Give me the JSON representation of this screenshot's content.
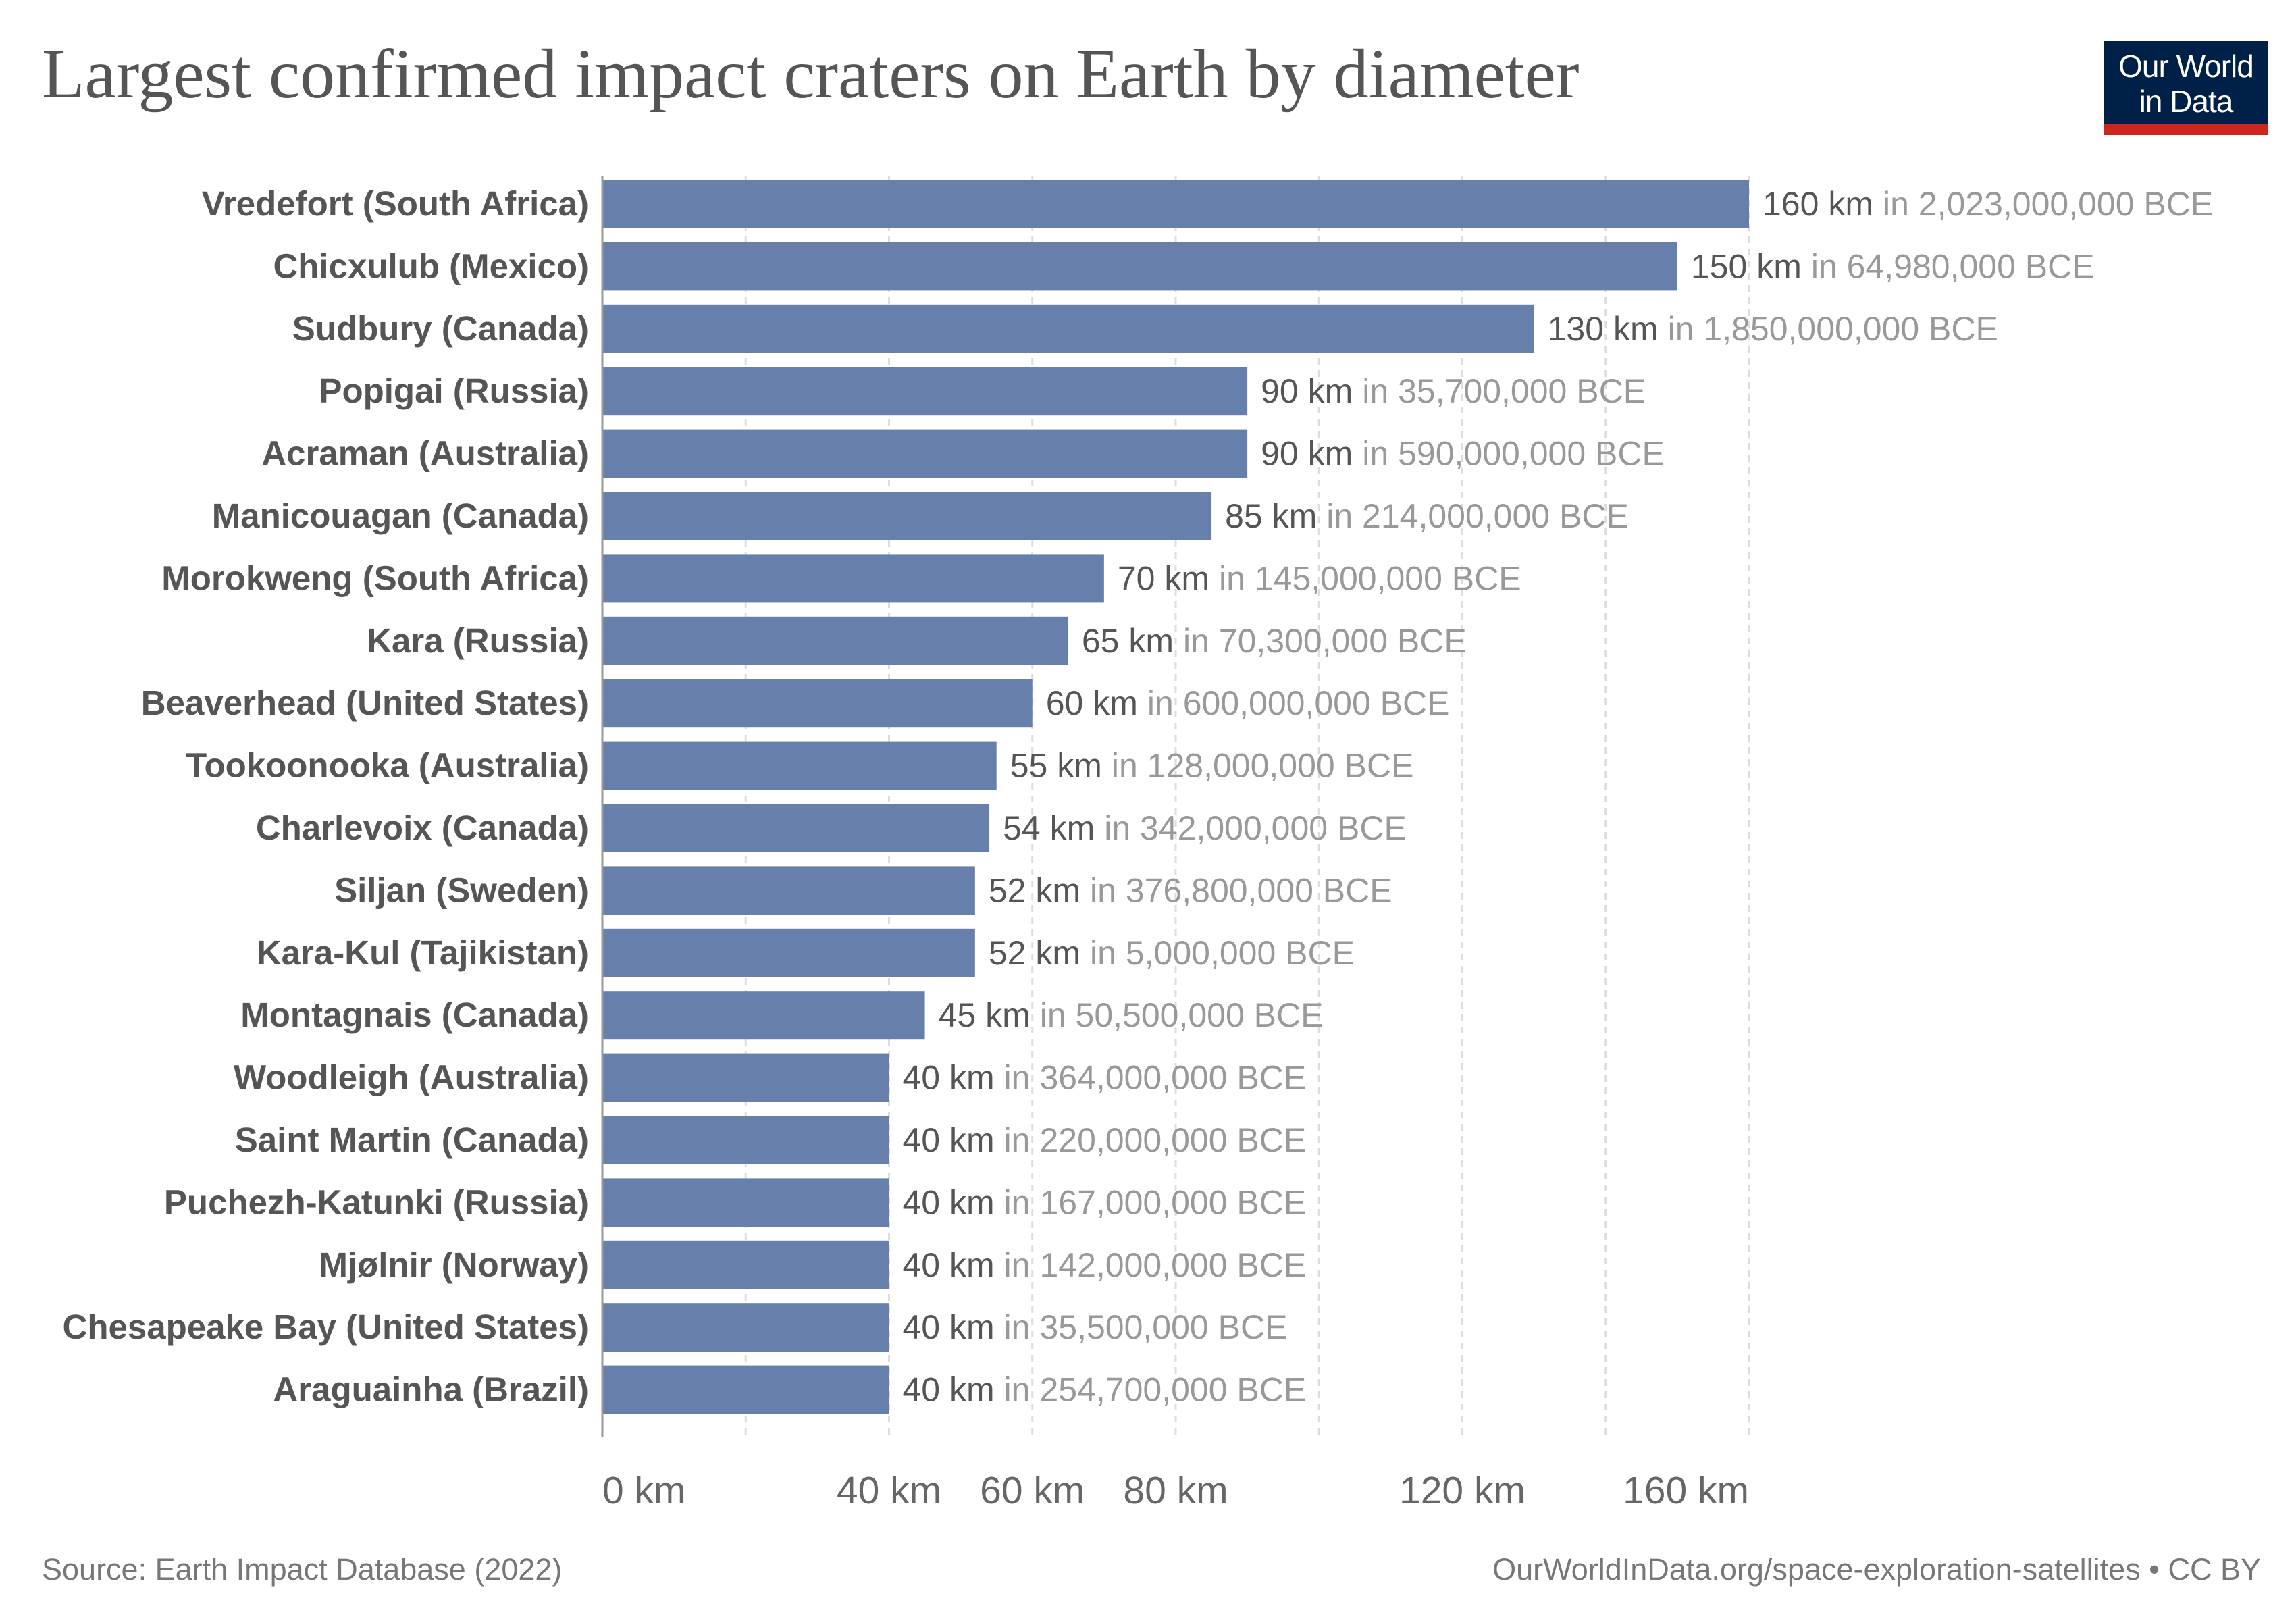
{
  "title": "Largest confirmed impact craters on Earth by diameter",
  "logo": {
    "line1": "Our World",
    "line2": "in Data"
  },
  "source": "Source: Earth Impact Database (2022)",
  "license": "OurWorldInData.org/space-exploration-satellites • CC BY",
  "colors": {
    "bar": "#6680ab",
    "grid": "#dddddd",
    "axis": "#999999"
  },
  "chart_data": {
    "type": "bar",
    "orientation": "horizontal",
    "categories": [
      "Vredefort (South Africa)",
      "Chicxulub (Mexico)",
      "Sudbury (Canada)",
      "Popigai (Russia)",
      "Acraman (Australia)",
      "Manicouagan (Canada)",
      "Morokweng (South Africa)",
      "Kara (Russia)",
      "Beaverhead (United States)",
      "Tookoonooka (Australia)",
      "Charlevoix (Canada)",
      "Siljan (Sweden)",
      "Kara-Kul (Tajikistan)",
      "Montagnais (Canada)",
      "Woodleigh (Australia)",
      "Saint Martin (Canada)",
      "Puchezh-Katunki (Russia)",
      "Mjølnir (Norway)",
      "Chesapeake Bay (United States)",
      "Araguainha (Brazil)"
    ],
    "values": [
      160,
      150,
      130,
      90,
      90,
      85,
      70,
      65,
      60,
      55,
      54,
      52,
      52,
      45,
      40,
      40,
      40,
      40,
      40,
      40
    ],
    "value_labels": [
      "160 km",
      "150 km",
      "130 km",
      "90 km",
      "90 km",
      "85 km",
      "70 km",
      "65 km",
      "60 km",
      "55 km",
      "54 km",
      "52 km",
      "52 km",
      "45 km",
      "40 km",
      "40 km",
      "40 km",
      "40 km",
      "40 km",
      "40 km"
    ],
    "date_labels": [
      "in 2,023,000,000 BCE",
      "in 64,980,000 BCE",
      "in 1,850,000,000 BCE",
      "in 35,700,000 BCE",
      "in 590,000,000 BCE",
      "in 214,000,000 BCE",
      "in 145,000,000 BCE",
      "in 70,300,000 BCE",
      "in 600,000,000 BCE",
      "in 128,000,000 BCE",
      "in 342,000,000 BCE",
      "in 376,800,000 BCE",
      "in 5,000,000 BCE",
      "in 50,500,000 BCE",
      "in 364,000,000 BCE",
      "in 220,000,000 BCE",
      "in 167,000,000 BCE",
      "in 142,000,000 BCE",
      "in 35,500,000 BCE",
      "in 254,700,000 BCE"
    ],
    "xlim": [
      0,
      160
    ],
    "gridlines": [
      20,
      40,
      60,
      80,
      100,
      120,
      140,
      160
    ],
    "ticks": [
      {
        "value": 0,
        "label": "0 km"
      },
      {
        "value": 40,
        "label": "40 km"
      },
      {
        "value": 60,
        "label": "60 km"
      },
      {
        "value": 80,
        "label": "80 km"
      },
      {
        "value": 120,
        "label": "120 km"
      },
      {
        "value": 160,
        "label": "160 km"
      }
    ],
    "xlabel": "",
    "ylabel": "",
    "grid": true,
    "legend": "none"
  }
}
